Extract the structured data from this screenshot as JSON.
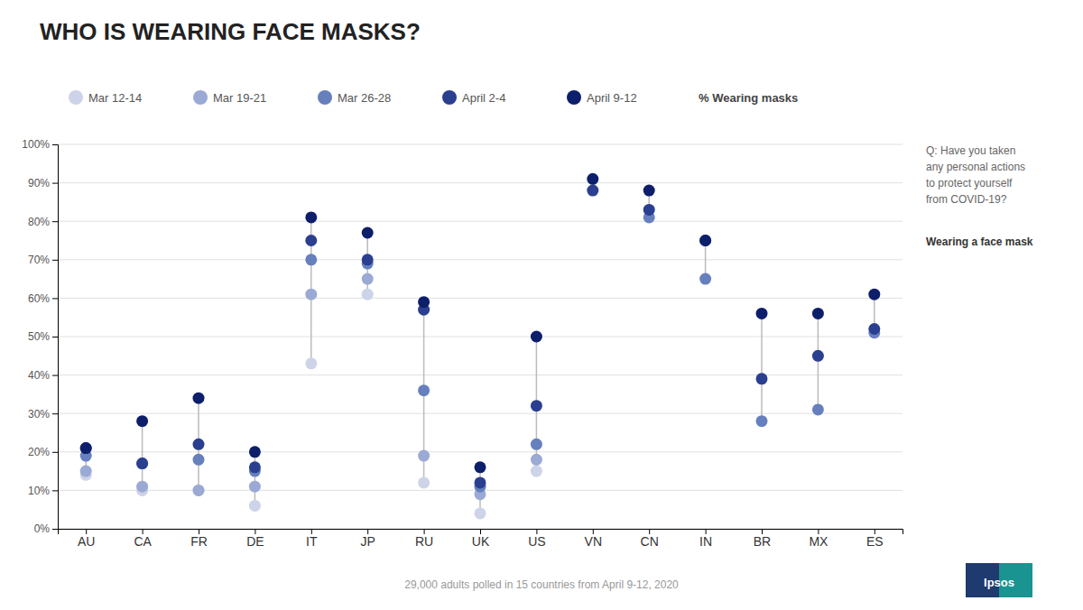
{
  "chart_data": {
    "type": "dot",
    "title": "WHO IS WEARING FACE MASKS?",
    "categories": [
      "AU",
      "CA",
      "FR",
      "DE",
      "IT",
      "JP",
      "RU",
      "UK",
      "US",
      "VN",
      "CN",
      "IN",
      "BR",
      "MX",
      "ES"
    ],
    "series": [
      {
        "name": "Mar 12-14",
        "color": "#cdd3e8",
        "values": [
          14,
          10,
          10,
          6,
          43,
          61,
          12,
          4,
          15,
          null,
          null,
          null,
          null,
          null,
          null
        ]
      },
      {
        "name": "Mar 19-21",
        "color": "#9aaad4",
        "values": [
          15,
          11,
          10,
          11,
          61,
          65,
          19,
          9,
          18,
          null,
          null,
          null,
          null,
          null,
          null
        ]
      },
      {
        "name": "Mar 26-28",
        "color": "#6680be",
        "values": [
          19,
          17,
          18,
          15,
          70,
          69,
          36,
          11,
          22,
          null,
          81,
          65,
          28,
          31,
          51
        ]
      },
      {
        "name": "April 2-4",
        "color": "#2a3f8f",
        "values": [
          21,
          17,
          22,
          16,
          75,
          70,
          57,
          12,
          32,
          88,
          83,
          75,
          39,
          45,
          52
        ]
      },
      {
        "name": "April 9-12",
        "color": "#0d1f6b",
        "values": [
          21,
          28,
          34,
          20,
          81,
          77,
          59,
          16,
          50,
          91,
          88,
          75,
          56,
          56,
          61
        ]
      }
    ],
    "legend_title": "% Wearing masks",
    "legend": "top",
    "annotations": [
      "Q: Have you taken\nany personal actions\nto protect yourself\nfrom COVID-19?",
      "Wearing a face mask",
      "Ipsos"
    ],
    "footnote": "29,000 adults polled in 15 countries from April 9-12, 2020",
    "ylim": [
      0,
      100
    ],
    "yticks": [
      {
        "value": 0,
        "label": "0%"
      },
      {
        "value": 10,
        "label": "10%"
      },
      {
        "value": 20,
        "label": "20%"
      },
      {
        "value": 30,
        "label": "30%"
      },
      {
        "value": 40,
        "label": "40%"
      },
      {
        "value": 50,
        "label": "50%"
      },
      {
        "value": 60,
        "label": "60%"
      },
      {
        "value": 70,
        "label": "70%"
      },
      {
        "value": 80,
        "label": "80%"
      },
      {
        "value": 90,
        "label": "90%"
      },
      {
        "value": 100,
        "label": "100%"
      }
    ],
    "grid": true
  }
}
